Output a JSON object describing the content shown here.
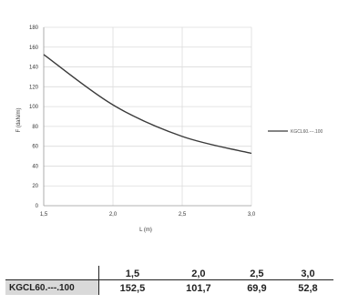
{
  "chart_data": {
    "type": "line",
    "title": "",
    "xlabel": "L (m)",
    "ylabel": "F (daN/m)",
    "xlim": [
      1.5,
      3.0
    ],
    "ylim": [
      0,
      180
    ],
    "x_ticks": [
      "1,5",
      "2,0",
      "2,5",
      "3,0"
    ],
    "y_ticks": [
      "0",
      "20",
      "40",
      "60",
      "80",
      "100",
      "120",
      "140",
      "160",
      "180"
    ],
    "grid": true,
    "legend_position": "right",
    "series": [
      {
        "name": "KGCL60.---.100",
        "color": "#3a3a3a",
        "points": [
          [
            1.5,
            152.5
          ],
          [
            2.0,
            101.7
          ],
          [
            2.5,
            69.9
          ],
          [
            3.0,
            52.8
          ]
        ]
      }
    ]
  },
  "table": {
    "headers": [
      "",
      "1,5",
      "2,0",
      "2,5",
      "3,0"
    ],
    "rows": [
      {
        "label": "KGCL60.---.100",
        "values": [
          "152,5",
          "101,7",
          "69,9",
          "52,8"
        ]
      }
    ]
  }
}
